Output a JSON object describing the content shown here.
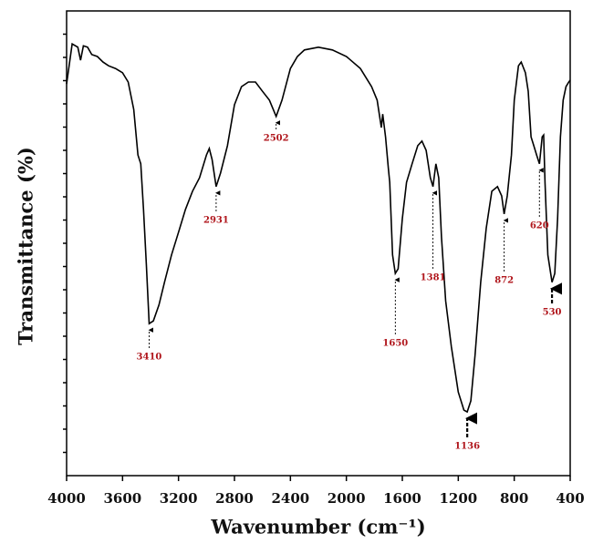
{
  "chart_data": {
    "type": "line",
    "x_label": "Wavenumber (cm⁻¹)",
    "y_label": "Transmittance (%)",
    "color": "#000000",
    "xlim": [
      4000,
      400
    ],
    "xticks": [
      4000,
      3600,
      3200,
      2800,
      2400,
      2000,
      1600,
      1200,
      800,
      400
    ],
    "ylim": [
      0,
      100
    ],
    "yticks": [
      5,
      10,
      15,
      20,
      25,
      30,
      35,
      40,
      45,
      50,
      55,
      60,
      65,
      70,
      75,
      80,
      85,
      90,
      95
    ],
    "x": [
      4000,
      3960,
      3920,
      3900,
      3880,
      3850,
      3820,
      3780,
      3740,
      3700,
      3650,
      3600,
      3560,
      3520,
      3490,
      3470,
      3450,
      3430,
      3410,
      3380,
      3340,
      3300,
      3250,
      3200,
      3150,
      3100,
      3050,
      3000,
      2980,
      2960,
      2931,
      2900,
      2850,
      2800,
      2750,
      2700,
      2650,
      2600,
      2550,
      2502,
      2460,
      2400,
      2350,
      2300,
      2200,
      2100,
      2000,
      1900,
      1820,
      1780,
      1750,
      1740,
      1720,
      1700,
      1690,
      1670,
      1650,
      1630,
      1600,
      1570,
      1530,
      1490,
      1460,
      1430,
      1400,
      1381,
      1360,
      1340,
      1320,
      1290,
      1250,
      1200,
      1160,
      1136,
      1110,
      1080,
      1040,
      1000,
      960,
      920,
      890,
      872,
      850,
      820,
      800,
      770,
      750,
      720,
      700,
      680,
      660,
      640,
      620,
      600,
      590,
      580,
      560,
      530,
      510,
      490,
      470,
      450,
      430,
      410,
      400
    ],
    "values": [
      84.3,
      92.9,
      92.2,
      89.4,
      92.5,
      92.2,
      90.6,
      90.2,
      89.0,
      88.2,
      87.6,
      86.7,
      84.7,
      78.8,
      69.0,
      67.1,
      57.3,
      45.5,
      32.7,
      33.3,
      36.7,
      41.6,
      47.5,
      52.4,
      57.3,
      61.2,
      64.1,
      69.0,
      70.4,
      68.0,
      62.2,
      65.1,
      71.0,
      79.8,
      83.7,
      84.7,
      84.7,
      82.7,
      80.8,
      77.3,
      80.8,
      87.6,
      90.2,
      91.6,
      92.2,
      91.6,
      90.2,
      87.6,
      83.7,
      80.8,
      74.9,
      77.8,
      72.9,
      66.1,
      63.1,
      47.5,
      43.5,
      44.5,
      55.3,
      63.1,
      67.1,
      71.0,
      72.0,
      70.0,
      64.1,
      62.2,
      67.1,
      64.1,
      51.4,
      37.6,
      27.8,
      18.0,
      14.1,
      13.7,
      16.1,
      25.9,
      41.6,
      53.3,
      61.2,
      62.2,
      60.2,
      56.3,
      60.2,
      69.0,
      80.8,
      88.2,
      89.0,
      86.7,
      82.7,
      72.9,
      71.0,
      69.0,
      67.1,
      72.9,
      73.3,
      63.1,
      47.5,
      41.6,
      43.5,
      55.3,
      72.9,
      80.8,
      83.7,
      84.7,
      85.1
    ],
    "peaks": [
      3410,
      2931,
      2502,
      1650,
      1381,
      1136,
      872,
      620,
      530
    ]
  }
}
